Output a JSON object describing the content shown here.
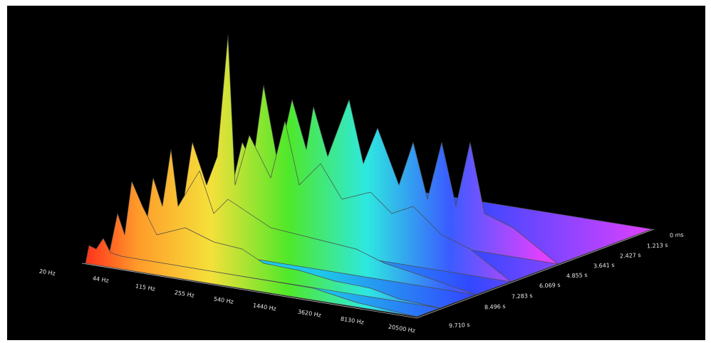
{
  "frequency_axis": {
    "labels": [
      "20 Hz",
      "44 Hz",
      "115 Hz",
      "255 Hz",
      "540 Hz",
      "1440 Hz",
      "3620 Hz",
      "8130 Hz",
      "20500 Hz"
    ]
  },
  "time_axis": {
    "labels": [
      "0 ms",
      "1.213 s",
      "2.427 s",
      "3.641 s",
      "4.855 s",
      "6.069 s",
      "7.283 s",
      "8.496 s",
      "9.710 s"
    ]
  }
}
